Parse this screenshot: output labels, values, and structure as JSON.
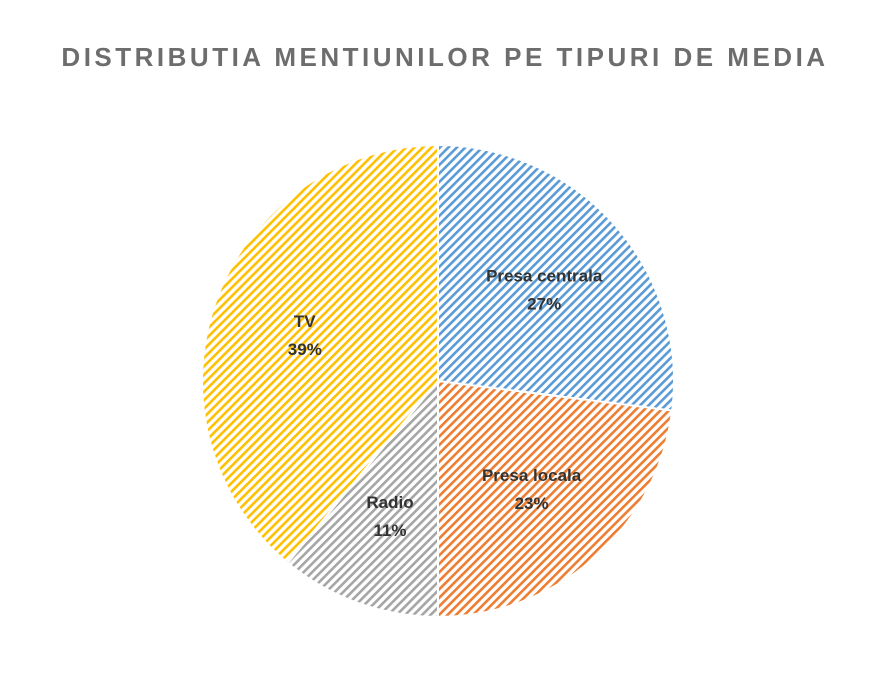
{
  "chart_data": {
    "type": "pie",
    "title": "DISTRIBUTIA MENTIUNILOR PE TIPURI DE MEDIA",
    "slices": [
      {
        "name": "Presa centrala",
        "value": 27,
        "label": "27%",
        "color": "#5b9bd5"
      },
      {
        "name": "Presa locala",
        "value": 23,
        "label": "23%",
        "color": "#ed7d31"
      },
      {
        "name": "Radio",
        "value": 11,
        "label": "11%",
        "color": "#a5a5a5"
      },
      {
        "name": "TV",
        "value": 39,
        "label": "39%",
        "color": "#ffc000"
      }
    ],
    "start_angle": "12 o'clock",
    "direction": "clockwise",
    "fill_pattern": "diagonal hatch",
    "legend": "none",
    "data_labels": "inside slices (category name + percent)"
  }
}
